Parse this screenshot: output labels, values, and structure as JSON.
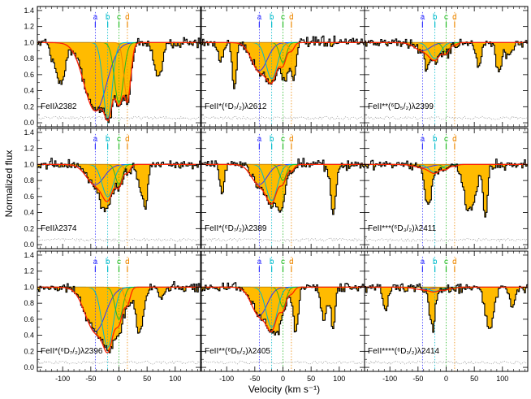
{
  "chart_data": {
    "type": "line",
    "xlabel": "Velocity (km s⁻¹)",
    "ylabel": "Normalized flux",
    "xlim": [
      -145,
      145
    ],
    "ylim": [
      -0.05,
      1.45
    ],
    "x_ticks": [
      "-100",
      "-50",
      "0",
      "50",
      "100"
    ],
    "y_ticks": [
      "0.0",
      "0.2",
      "0.4",
      "0.6",
      "0.8",
      "1.0",
      "1.2",
      "1.4"
    ],
    "components": [
      {
        "name": "a",
        "velocity": -42,
        "color": "#3333ff"
      },
      {
        "name": "b",
        "velocity": -20,
        "color": "#00bbcc"
      },
      {
        "name": "c",
        "velocity": 0,
        "color": "#22bb22"
      },
      {
        "name": "d",
        "velocity": 15,
        "color": "#ee8800"
      }
    ],
    "colors": {
      "data": "#000000",
      "fit": "#ff2200",
      "blend": "#ffbb00",
      "error": "#888888"
    },
    "panels": [
      {
        "label": "FeIIλ2382",
        "depths": [
          0.85,
          0.95,
          0.75,
          0.7
        ],
        "widths": [
          20,
          8,
          8,
          6
        ]
      },
      {
        "label": "FeII*(⁶D₇/₂)λ2612",
        "depths": [
          0.35,
          0.45,
          0.25,
          0.1
        ],
        "widths": [
          14,
          10,
          6,
          5
        ]
      },
      {
        "label": "FeII**(⁶D₅/₂)λ2399",
        "depths": [
          0.1,
          0.2,
          0.12,
          0.03
        ],
        "widths": [
          14,
          10,
          6,
          5
        ]
      },
      {
        "label": "FeIIλ2374",
        "depths": [
          0.25,
          0.4,
          0.25,
          0.1
        ],
        "widths": [
          16,
          10,
          6,
          5
        ]
      },
      {
        "label": "FeII*(⁶D₇/₂)λ2389",
        "depths": [
          0.25,
          0.45,
          0.2,
          0.08
        ],
        "widths": [
          14,
          10,
          6,
          5
        ]
      },
      {
        "label": "FeII***(⁶D₃/₂)λ2411",
        "depths": [
          0.04,
          0.1,
          0.05,
          0.02
        ],
        "widths": [
          14,
          10,
          6,
          5
        ]
      },
      {
        "label": "FeII*(⁶D₇/₂)λ2396",
        "depths": [
          0.55,
          0.75,
          0.4,
          0.2
        ],
        "widths": [
          18,
          10,
          7,
          5
        ]
      },
      {
        "label": "FeII**(⁶D₅/₂)λ2405",
        "depths": [
          0.35,
          0.5,
          0.25,
          0.08
        ],
        "widths": [
          14,
          10,
          6,
          5
        ]
      },
      {
        "label": "FeII****(⁶D₁/₂)λ2414",
        "depths": [
          0.03,
          0.05,
          0.03,
          0.01
        ],
        "widths": [
          14,
          10,
          6,
          5
        ]
      }
    ]
  }
}
